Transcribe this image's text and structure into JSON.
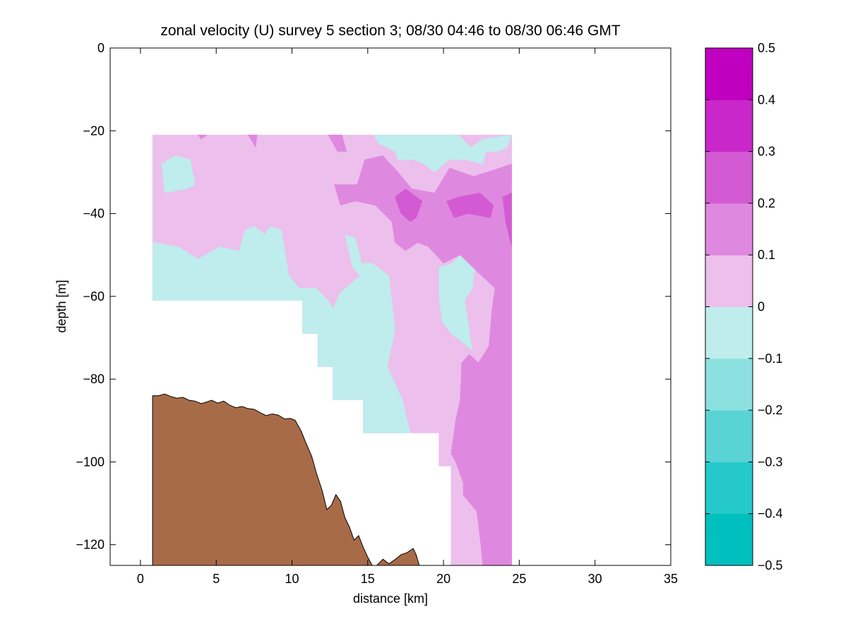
{
  "chart_data": [
    {
      "type": "contour",
      "title": "zonal velocity (U) survey 5 section 3; 08/30 04:46 to 08/30 06:46 GMT",
      "xlabel": "distance [km]",
      "ylabel": "depth [m]",
      "xlim": [
        -2,
        35
      ],
      "ylim": [
        -125,
        0
      ],
      "xticks": [
        0,
        5,
        10,
        15,
        20,
        25,
        30,
        35
      ],
      "xtick_labels": [
        "0",
        "5",
        "10",
        "15",
        "20",
        "25",
        "30",
        "35"
      ],
      "yticks": [
        0,
        -20,
        -40,
        -60,
        -80,
        -100,
        -120
      ],
      "ytick_labels": [
        "0",
        "−20",
        "−40",
        "−60",
        "−80",
        "−100",
        "−120"
      ],
      "grid": false,
      "colormap": {
        "levels": [
          -0.5,
          -0.4,
          -0.3,
          -0.2,
          -0.1,
          0,
          0.1,
          0.2,
          0.3,
          0.4,
          0.5
        ],
        "colors": [
          "#00bfbf",
          "#26c9c9",
          "#59d3d3",
          "#8ce0e0",
          "#bfecec",
          "#ecbfec",
          "#df88df",
          "#d35ad3",
          "#c927c9",
          "#bf00bf"
        ]
      },
      "colorbar_ticks": [
        0.5,
        0.4,
        0.3,
        0.2,
        0.1,
        0,
        -0.1,
        -0.2,
        -0.3,
        -0.4,
        -0.5
      ],
      "colorbar_tick_labels": [
        "0.5",
        "0.4",
        "0.3",
        "0.2",
        "0.1",
        "0",
        "−0.1",
        "−0.2",
        "−0.3",
        "−0.4",
        "−0.5"
      ],
      "data_region": {
        "x_range_km": [
          0.8,
          24.5
        ],
        "top_depth_m": -21,
        "bottom_outline": [
          [
            0.8,
            -61
          ],
          [
            10.7,
            -61
          ],
          [
            10.7,
            -69
          ],
          [
            11.7,
            -69
          ],
          [
            11.7,
            -77
          ],
          [
            12.7,
            -77
          ],
          [
            12.7,
            -85
          ],
          [
            14.7,
            -85
          ],
          [
            14.7,
            -93
          ],
          [
            19.7,
            -93
          ],
          [
            19.7,
            -101
          ],
          [
            20.5,
            -101
          ],
          [
            20.5,
            -125
          ],
          [
            24.5,
            -125
          ],
          [
            24.5,
            -21
          ]
        ]
      },
      "filled_contours": [
        {
          "level": "0 to 0.1",
          "polygon": [
            [
              0.8,
              -21
            ],
            [
              24.5,
              -21
            ],
            [
              24.5,
              -125
            ],
            [
              20.5,
              -125
            ],
            [
              20.5,
              -101
            ],
            [
              19.7,
              -101
            ],
            [
              19.7,
              -93
            ],
            [
              14.7,
              -93
            ],
            [
              14.7,
              -85
            ],
            [
              12.7,
              -85
            ],
            [
              12.7,
              -77
            ],
            [
              11.7,
              -77
            ],
            [
              11.7,
              -69
            ],
            [
              10.7,
              -69
            ],
            [
              10.7,
              -61
            ],
            [
              0.8,
              -61
            ]
          ]
        },
        {
          "level": "-0.1 to 0",
          "polygon": [
            [
              0.8,
              -47
            ],
            [
              2.5,
              -48
            ],
            [
              3.8,
              -51
            ],
            [
              5.2,
              -48
            ],
            [
              6.5,
              -49
            ],
            [
              6.9,
              -44
            ],
            [
              7.5,
              -43
            ],
            [
              8.2,
              -45
            ],
            [
              8.6,
              -43
            ],
            [
              9.3,
              -44
            ],
            [
              9.8,
              -55
            ],
            [
              10.5,
              -58
            ],
            [
              11.6,
              -58
            ],
            [
              12.4,
              -61
            ],
            [
              12.7,
              -63
            ],
            [
              13.2,
              -59
            ],
            [
              14.5,
              -55
            ],
            [
              14.0,
              -53
            ],
            [
              13.5,
              -45
            ],
            [
              14.2,
              -46
            ],
            [
              14.6,
              -52
            ],
            [
              15.3,
              -52
            ],
            [
              16.4,
              -55
            ],
            [
              16.8,
              -68
            ],
            [
              16.3,
              -77
            ],
            [
              17.3,
              -85
            ],
            [
              17.8,
              -93
            ],
            [
              14.7,
              -93
            ],
            [
              14.7,
              -85
            ],
            [
              12.7,
              -85
            ],
            [
              12.7,
              -77
            ],
            [
              11.7,
              -77
            ],
            [
              11.7,
              -69
            ],
            [
              10.7,
              -69
            ],
            [
              10.7,
              -61
            ],
            [
              0.8,
              -61
            ]
          ]
        },
        {
          "level": "-0.1 to 0",
          "polygon": [
            [
              1.4,
              -28
            ],
            [
              2.3,
              -26
            ],
            [
              3.3,
              -27
            ],
            [
              3.6,
              -33
            ],
            [
              3.1,
              -34
            ],
            [
              1.6,
              -35
            ]
          ]
        },
        {
          "level": "-0.1 to 0",
          "polygon": [
            [
              15.4,
              -21
            ],
            [
              21.0,
              -21
            ],
            [
              21.8,
              -24
            ],
            [
              22.6,
              -22
            ],
            [
              24.5,
              -21
            ],
            [
              24.2,
              -24
            ],
            [
              23.6,
              -25
            ],
            [
              22.8,
              -25
            ],
            [
              22.6,
              -28
            ],
            [
              21.5,
              -27
            ],
            [
              20.4,
              -27
            ],
            [
              19.4,
              -30
            ],
            [
              18.7,
              -28
            ],
            [
              18.0,
              -27
            ],
            [
              17.0,
              -27
            ],
            [
              16.8,
              -25
            ],
            [
              15.7,
              -23
            ]
          ]
        },
        {
          "level": "-0.1 to 0",
          "polygon": [
            [
              19.7,
              -53
            ],
            [
              20.6,
              -52
            ],
            [
              21.1,
              -50
            ],
            [
              21.7,
              -50
            ],
            [
              22.1,
              -53
            ],
            [
              21.9,
              -58
            ],
            [
              21.4,
              -61
            ],
            [
              21.9,
              -73
            ],
            [
              20.5,
              -69
            ],
            [
              19.9,
              -66
            ],
            [
              19.7,
              -60
            ]
          ]
        },
        {
          "level": "0.1 to 0.2",
          "polygon": [
            [
              14.8,
              -27
            ],
            [
              16.0,
              -26
            ],
            [
              17.0,
              -30
            ],
            [
              17.9,
              -34
            ],
            [
              19.4,
              -35
            ],
            [
              20.4,
              -29
            ],
            [
              22.0,
              -31
            ],
            [
              23.7,
              -29
            ],
            [
              24.5,
              -28
            ],
            [
              24.5,
              -125
            ],
            [
              22.6,
              -125
            ],
            [
              22.4,
              -118
            ],
            [
              22.2,
              -112
            ],
            [
              21.3,
              -108
            ],
            [
              21.3,
              -105
            ],
            [
              20.8,
              -100
            ],
            [
              20.5,
              -98
            ],
            [
              20.8,
              -90
            ],
            [
              21.1,
              -85
            ],
            [
              21.2,
              -76
            ],
            [
              21.7,
              -74
            ],
            [
              22.3,
              -76
            ],
            [
              23.0,
              -72
            ],
            [
              23.2,
              -63
            ],
            [
              23.4,
              -58
            ],
            [
              22.5,
              -55
            ],
            [
              21.1,
              -50
            ],
            [
              20.0,
              -52
            ],
            [
              19.0,
              -48
            ],
            [
              18.3,
              -47
            ],
            [
              17.5,
              -49
            ],
            [
              16.8,
              -47
            ],
            [
              16.6,
              -42
            ],
            [
              15.5,
              -38
            ],
            [
              14.2,
              -37
            ],
            [
              13.2,
              -38
            ],
            [
              12.8,
              -33
            ],
            [
              14.3,
              -33
            ]
          ]
        },
        {
          "level": "0.1 to 0.2",
          "polygon": [
            [
              12.4,
              -21
            ],
            [
              13.3,
              -21
            ],
            [
              13.6,
              -25
            ],
            [
              13.0,
              -25
            ]
          ]
        },
        {
          "level": "0.1 to 0.2",
          "polygon": [
            [
              3.8,
              -21
            ],
            [
              4.4,
              -21
            ],
            [
              4.0,
              -22
            ]
          ]
        },
        {
          "level": "0.1 to 0.2",
          "polygon": [
            [
              7.1,
              -21
            ],
            [
              7.7,
              -21
            ],
            [
              7.6,
              -24
            ]
          ]
        },
        {
          "level": "0.2 to 0.3",
          "polygon": [
            [
              16.8,
              -36
            ],
            [
              17.5,
              -34
            ],
            [
              18.6,
              -37
            ],
            [
              18.2,
              -41
            ],
            [
              17.8,
              -42
            ],
            [
              17.2,
              -40
            ]
          ]
        },
        {
          "level": "0.2 to 0.3",
          "polygon": [
            [
              20.2,
              -37
            ],
            [
              21.0,
              -36
            ],
            [
              22.4,
              -35
            ],
            [
              23.3,
              -38
            ],
            [
              23.1,
              -41
            ],
            [
              21.6,
              -40
            ],
            [
              20.7,
              -41
            ]
          ]
        },
        {
          "level": "0.2 to 0.3",
          "polygon": [
            [
              23.9,
              -36
            ],
            [
              24.5,
              -35
            ],
            [
              24.5,
              -48
            ],
            [
              24.1,
              -42
            ]
          ]
        }
      ],
      "bathymetry": {
        "fill_color": "#a86b48",
        "points": [
          [
            0.8,
            -84
          ],
          [
            1.2,
            -84
          ],
          [
            1.6,
            -83.6
          ],
          [
            2.0,
            -84.2
          ],
          [
            2.4,
            -84.6
          ],
          [
            2.8,
            -84.4
          ],
          [
            3.2,
            -85.1
          ],
          [
            3.6,
            -85.3
          ],
          [
            4.0,
            -85.9
          ],
          [
            4.3,
            -85.6
          ],
          [
            4.7,
            -85.1
          ],
          [
            5.1,
            -85.8
          ],
          [
            5.5,
            -85.3
          ],
          [
            5.9,
            -86.3
          ],
          [
            6.3,
            -86.9
          ],
          [
            6.7,
            -86.6
          ],
          [
            7.1,
            -87.1
          ],
          [
            7.5,
            -87.3
          ],
          [
            7.9,
            -88.1
          ],
          [
            8.3,
            -88.8
          ],
          [
            8.7,
            -88.4
          ],
          [
            9.1,
            -88.7
          ],
          [
            9.5,
            -89.6
          ],
          [
            9.9,
            -89.5
          ],
          [
            10.2,
            -89.9
          ],
          [
            10.6,
            -92.5
          ],
          [
            10.9,
            -95.2
          ],
          [
            11.3,
            -98.6
          ],
          [
            11.6,
            -102.5
          ],
          [
            12.0,
            -107
          ],
          [
            12.3,
            -111.5
          ],
          [
            12.6,
            -110.5
          ],
          [
            12.9,
            -107.9
          ],
          [
            13.2,
            -109.5
          ],
          [
            13.5,
            -113.5
          ],
          [
            13.8,
            -115.8
          ],
          [
            14.1,
            -118.9
          ],
          [
            14.4,
            -117.8
          ],
          [
            14.7,
            -120.6
          ],
          [
            15.0,
            -123.0
          ],
          [
            15.3,
            -125.0
          ]
        ]
      },
      "bathymetry_patch": [
        [
          15.6,
          -125
        ],
        [
          16.0,
          -123.5
        ],
        [
          16.4,
          -124.6
        ],
        [
          16.8,
          -123.6
        ],
        [
          17.2,
          -122.4
        ],
        [
          17.6,
          -121.9
        ],
        [
          18.0,
          -120.9
        ],
        [
          18.2,
          -122.5
        ],
        [
          18.4,
          -125
        ]
      ]
    }
  ]
}
